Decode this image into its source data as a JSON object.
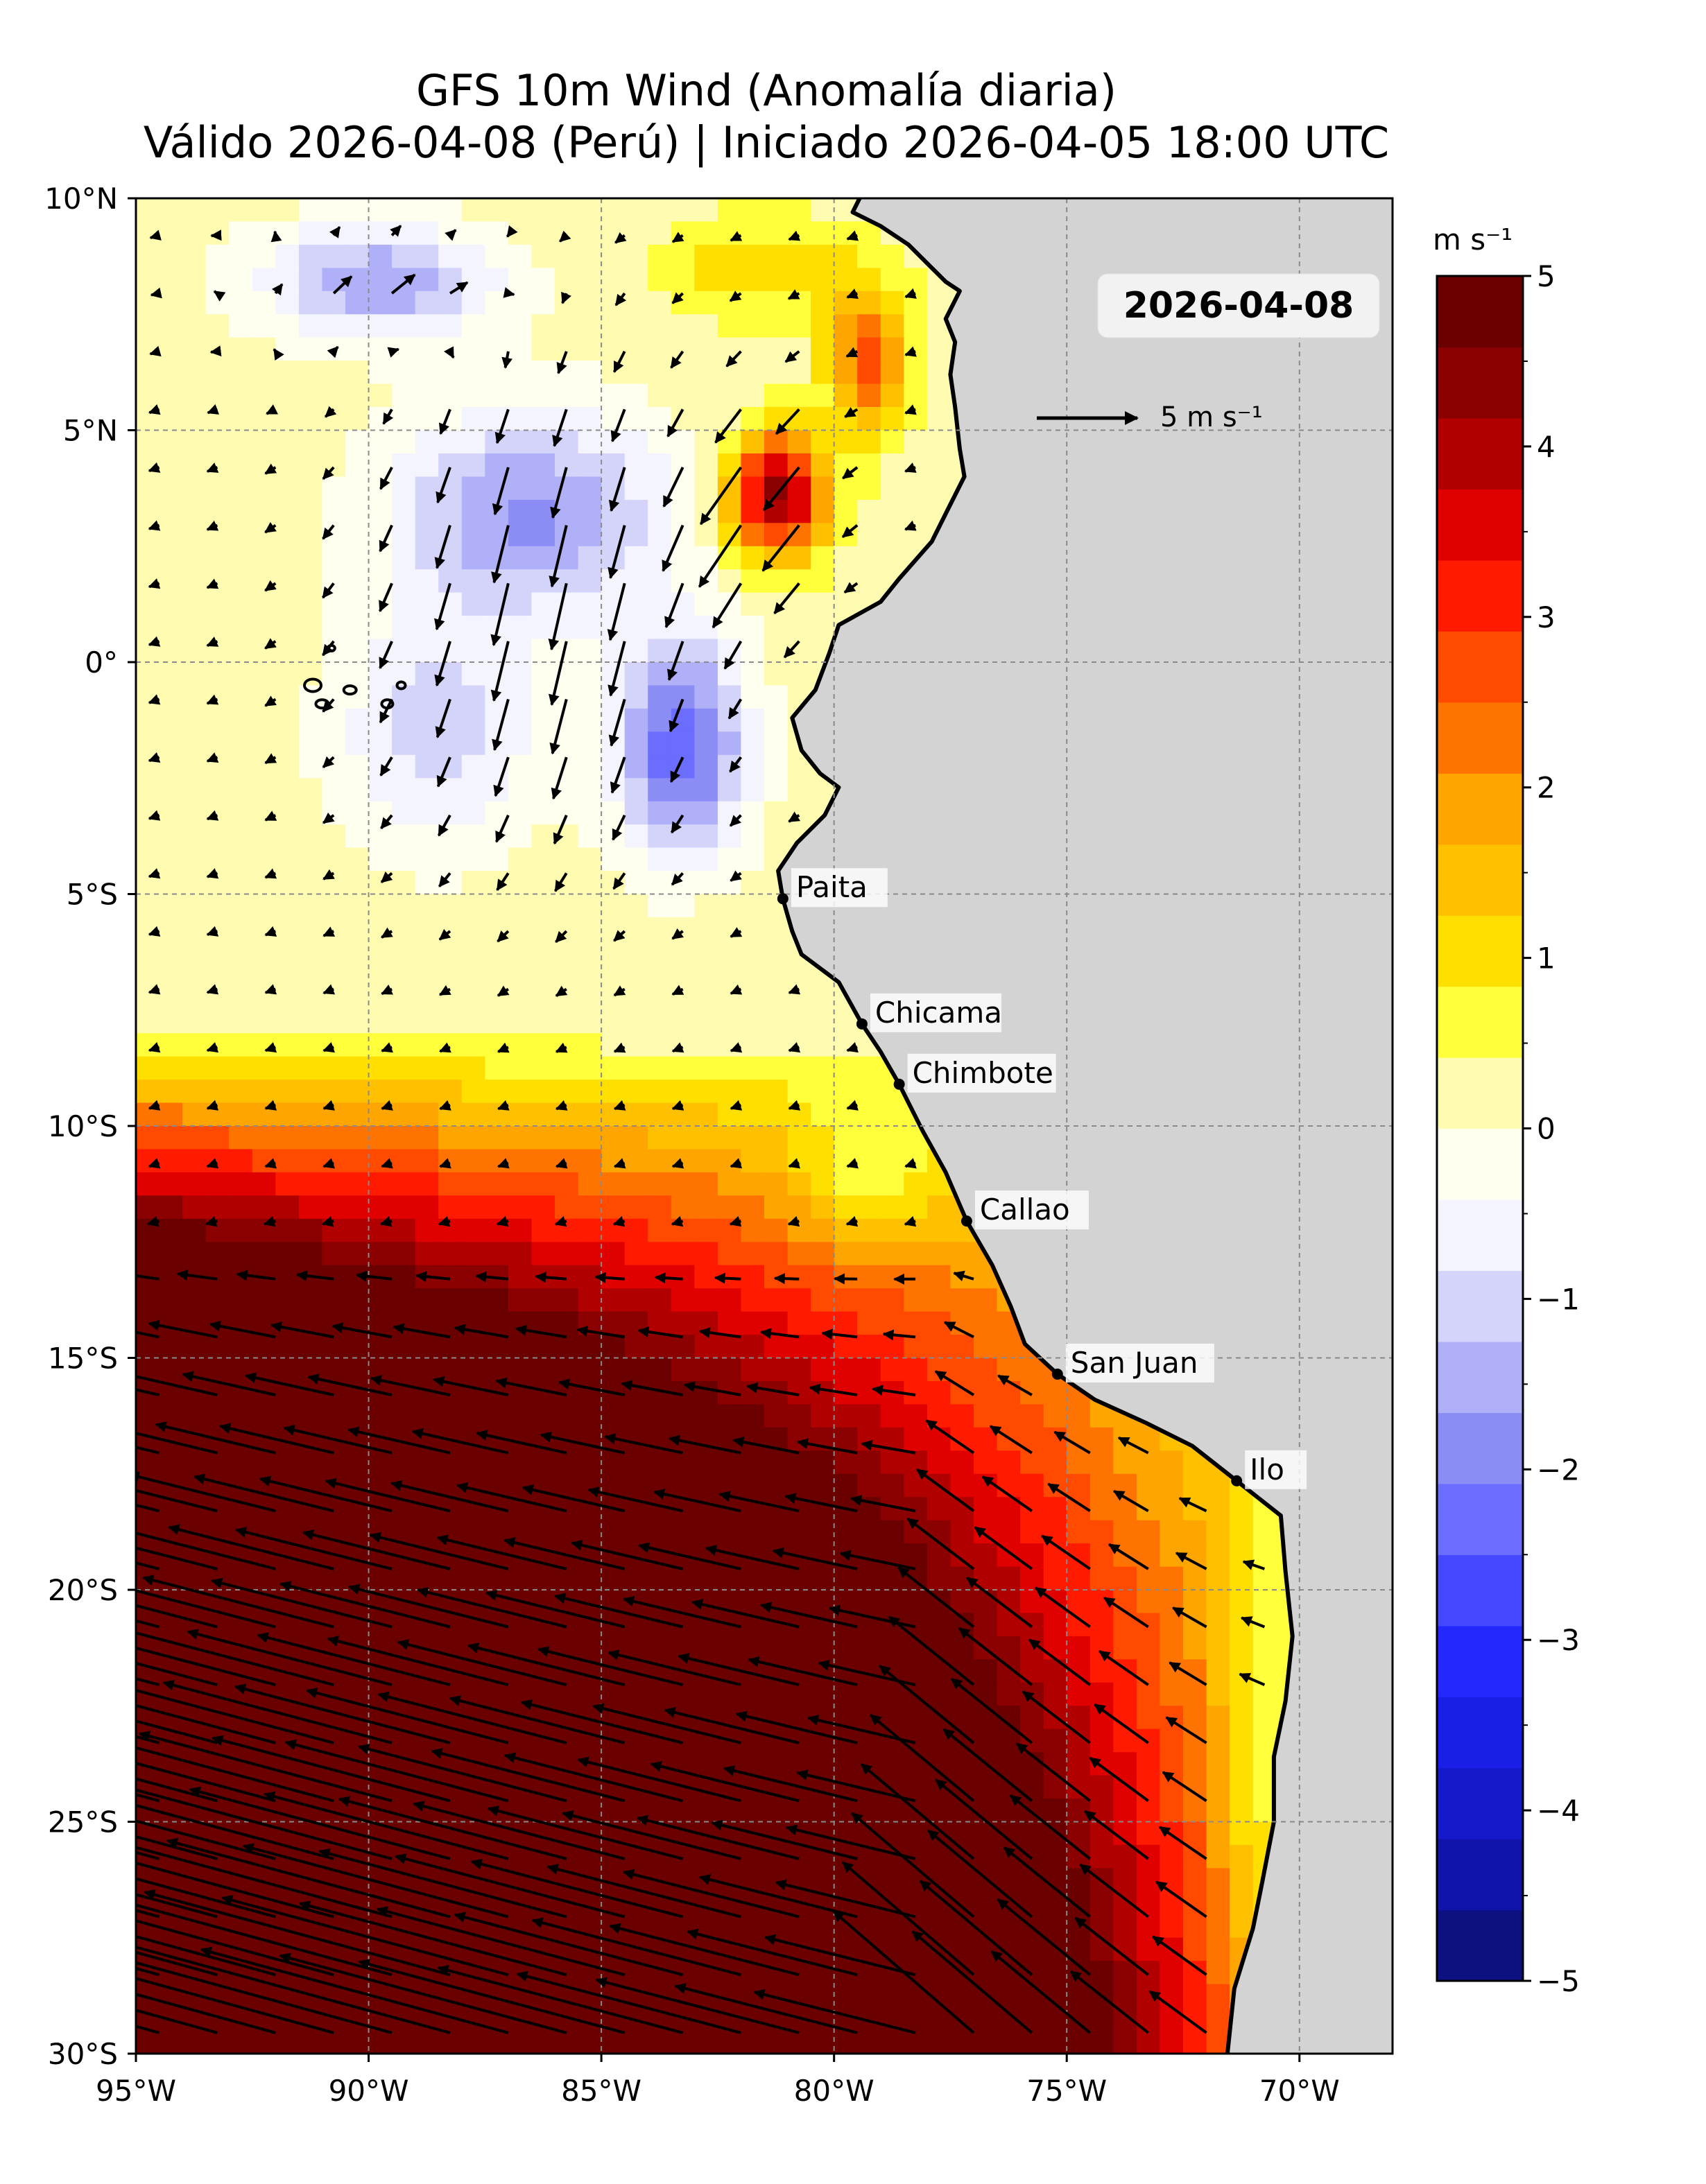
{
  "title": {
    "line1": "GFS 10m Wind (Anomalía diaria)",
    "line2": "Válido 2026-04-08 (Perú) | Iniciado 2026-04-05 18:00 UTC"
  },
  "date_badge": "2026-04-08",
  "reference_vector": {
    "magnitude": 5,
    "label": "5 m s⁻¹"
  },
  "colorbar": {
    "unit_label": "m s⁻¹",
    "range": [
      -5,
      5
    ],
    "ticks": [
      "5",
      "4",
      "3",
      "2",
      "1",
      "0",
      "−1",
      "−2",
      "−3",
      "−4",
      "−5"
    ],
    "colors": [
      "#0d1080",
      "#1114a8",
      "#1519cc",
      "#1a1fe8",
      "#2428ff",
      "#4448ff",
      "#6b6dff",
      "#8c8cf5",
      "#b0b0f8",
      "#d4d4fb",
      "#f4f4ff",
      "#fffff0",
      "#fffbb0",
      "#ffff3c",
      "#ffdf00",
      "#ffc000",
      "#ffa500",
      "#ff7400",
      "#ff4a00",
      "#ff1a00",
      "#e00000",
      "#b00000",
      "#8b0000",
      "#6b0000"
    ]
  },
  "map": {
    "lon_range": [
      -95,
      -68
    ],
    "lat_range": [
      -30,
      10
    ],
    "lon_labels": [
      "95°W",
      "90°W",
      "85°W",
      "80°W",
      "75°W",
      "70°W"
    ],
    "lat_labels": [
      "10°N",
      "5°N",
      "0°",
      "5°S",
      "10°S",
      "15°S",
      "20°S",
      "25°S",
      "30°S"
    ],
    "land_color": "#d3d3d3",
    "cities": [
      {
        "name": "Paita",
        "lon": -81.1,
        "lat": -5.1
      },
      {
        "name": "Chicama",
        "lon": -79.4,
        "lat": -7.8
      },
      {
        "name": "Chimbote",
        "lon": -78.6,
        "lat": -9.1
      },
      {
        "name": "Callao",
        "lon": -77.15,
        "lat": -12.05
      },
      {
        "name": "San Juan",
        "lon": -75.2,
        "lat": -15.35
      },
      {
        "name": "Ilo",
        "lon": -71.35,
        "lat": -17.65
      }
    ]
  }
}
